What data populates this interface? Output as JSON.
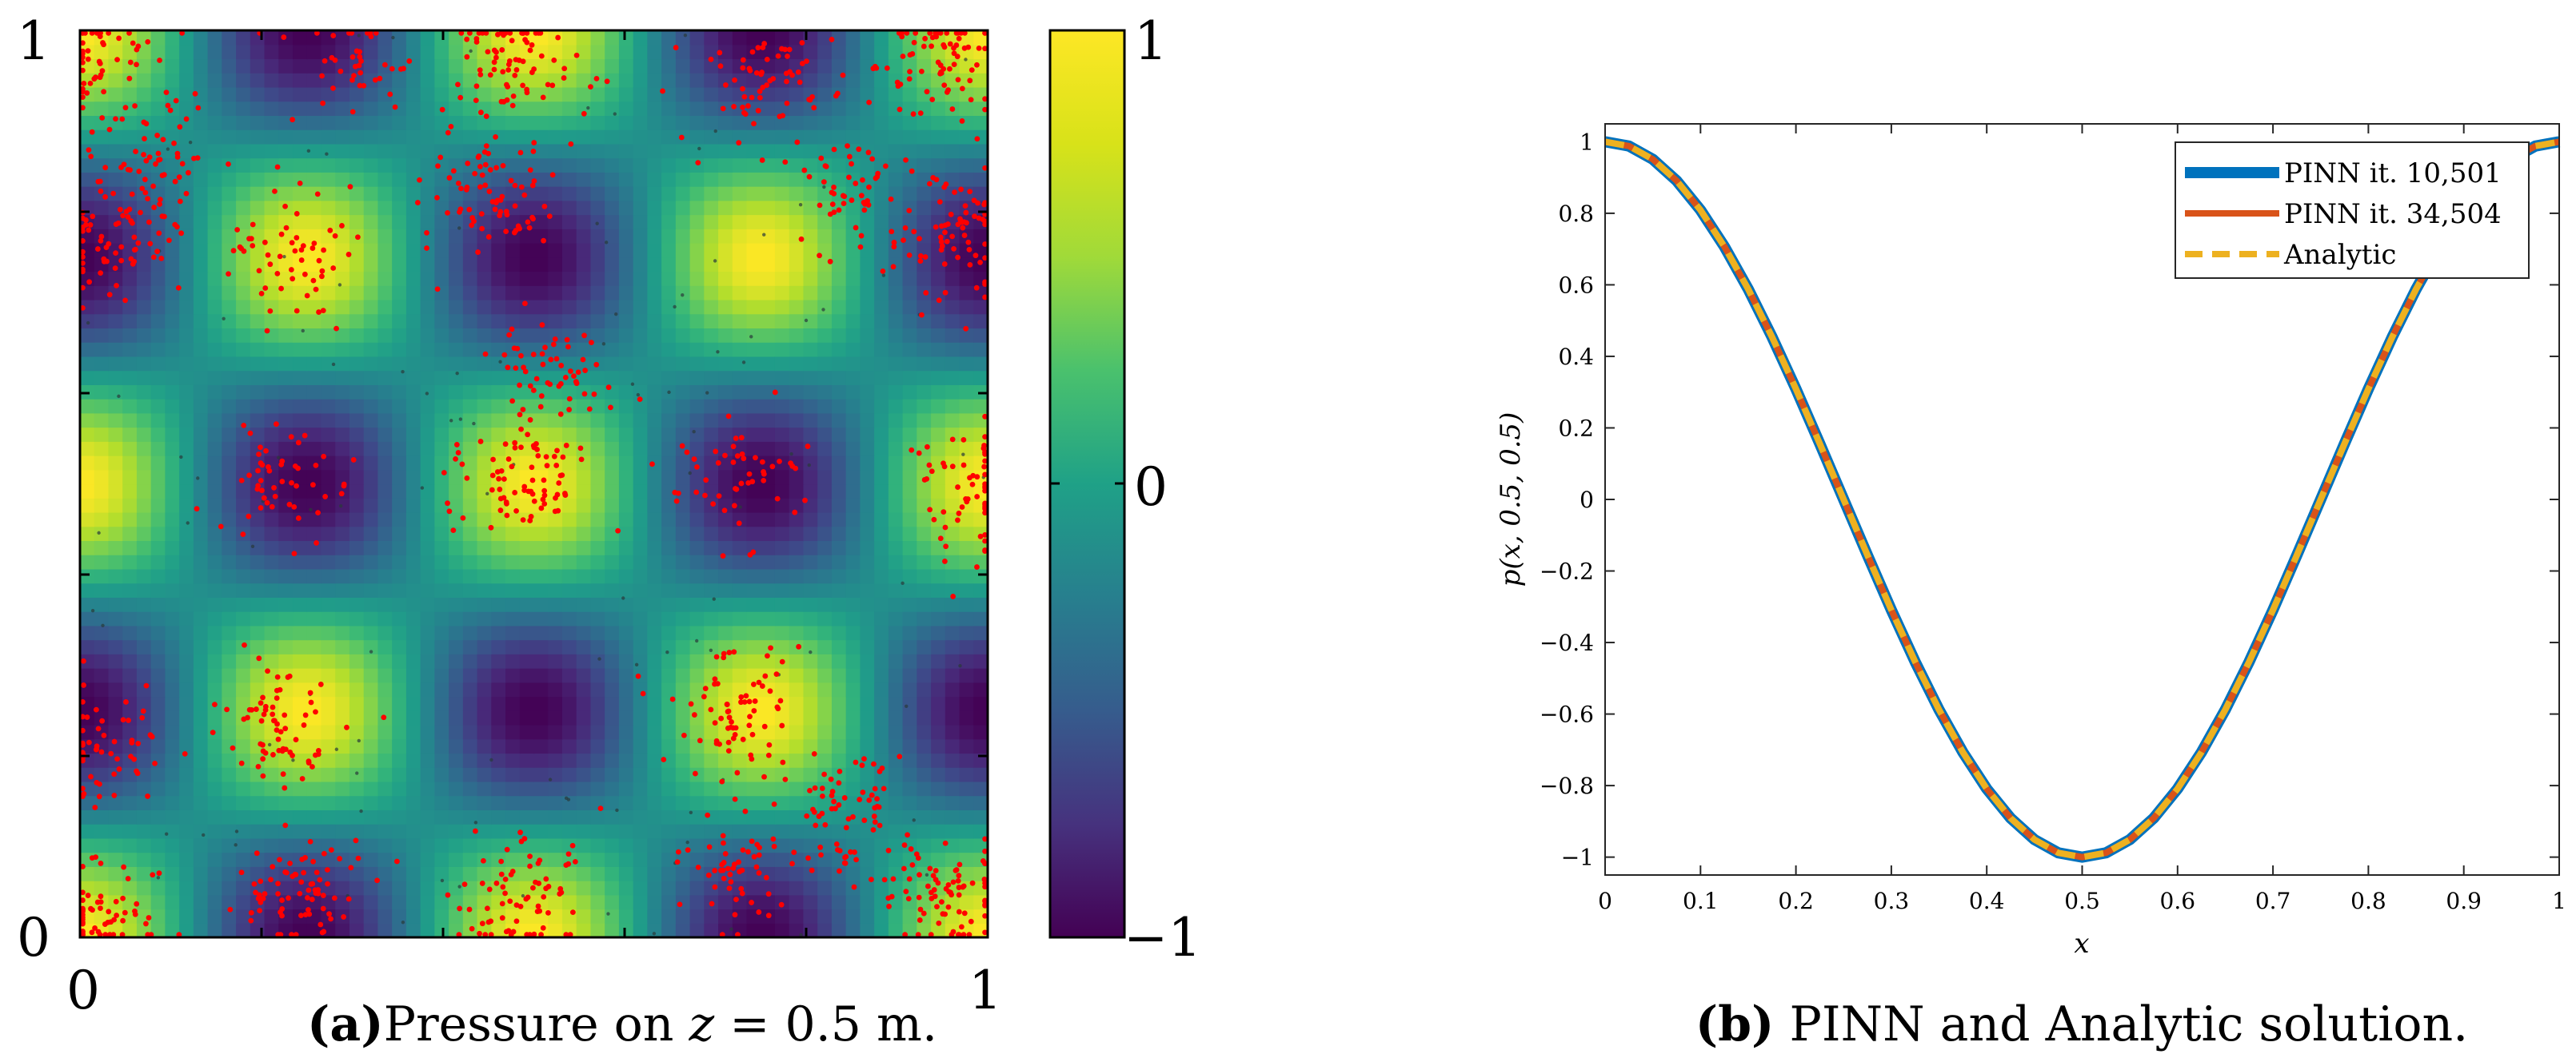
{
  "chart_data": [
    {
      "type": "heatmap",
      "panel_label": "(a)",
      "caption": "Pressure on z = 0.5 m.",
      "caption_parts": {
        "label": "(a)",
        "prefix": "Pressure on ",
        "var": "z",
        "eq": " = 0.5 m."
      },
      "x_tick_labels": [
        "0",
        "1"
      ],
      "y_tick_labels": [
        "0",
        "1"
      ],
      "xlim": [
        0,
        1
      ],
      "ylim": [
        0,
        1
      ],
      "colorbar": {
        "min": -1,
        "max": 1,
        "tick_labels": [
          "−1",
          "0",
          "1"
        ],
        "colormap": "viridis"
      },
      "field": "cos(4*pi*x)*cos(4*pi*y)",
      "grid_resolution": 64,
      "scatter_color": "#ff0000",
      "scatter_dense_regions": [
        [
          0.02,
          0.97
        ],
        [
          0.23,
          0.75
        ],
        [
          0.48,
          0.97
        ],
        [
          0.95,
          0.97
        ],
        [
          0.04,
          0.77
        ],
        [
          0.23,
          0.51
        ],
        [
          0.48,
          0.5
        ],
        [
          0.72,
          0.51
        ],
        [
          0.98,
          0.5
        ],
        [
          0.22,
          0.23
        ],
        [
          0.72,
          0.24
        ],
        [
          0.03,
          0.21
        ],
        [
          0.24,
          0.05
        ],
        [
          0.49,
          0.05
        ],
        [
          0.72,
          0.08
        ],
        [
          0.95,
          0.05
        ],
        [
          0.02,
          0.03
        ],
        [
          0.85,
          0.82
        ],
        [
          0.52,
          0.62
        ],
        [
          0.3,
          0.97
        ],
        [
          0.76,
          0.94
        ],
        [
          0.84,
          0.14
        ],
        [
          0.96,
          0.77
        ],
        [
          0.45,
          0.82
        ],
        [
          0.08,
          0.86
        ]
      ],
      "scatter_gray_color": "#2a3a3a"
    },
    {
      "type": "line",
      "panel_label": "(b)",
      "caption": "PINN and Analytic solution.",
      "caption_parts": {
        "label": "(b)",
        "text": " PINN and Analytic solution."
      },
      "xlabel": "x",
      "ylabel": "p(x, 0.5, 0.5)",
      "xlim": [
        0,
        1
      ],
      "ylim": [
        -1.05,
        1.05
      ],
      "x_ticks": [
        0,
        0.1,
        0.2,
        0.3,
        0.4,
        0.5,
        0.6,
        0.7,
        0.8,
        0.9,
        1
      ],
      "x_tick_labels": [
        "0",
        "0.1",
        "0.2",
        "0.3",
        "0.4",
        "0.5",
        "0.6",
        "0.7",
        "0.8",
        "0.9",
        "1"
      ],
      "y_ticks": [
        1,
        0.8,
        0.6,
        0.4,
        0.2,
        0,
        -0.2,
        -0.4,
        -0.6,
        -0.8,
        -1
      ],
      "y_tick_labels": [
        "1",
        "0.8",
        "0.6",
        "0.4",
        "0.2",
        "0",
        "−0.2",
        "−0.4",
        "−0.6",
        "−0.8",
        "−1"
      ],
      "legend_position": "top-right",
      "x": [
        0,
        0.025,
        0.05,
        0.075,
        0.1,
        0.125,
        0.15,
        0.175,
        0.2,
        0.225,
        0.25,
        0.275,
        0.3,
        0.325,
        0.35,
        0.375,
        0.4,
        0.425,
        0.45,
        0.475,
        0.5,
        0.525,
        0.55,
        0.575,
        0.6,
        0.625,
        0.65,
        0.675,
        0.7,
        0.725,
        0.75,
        0.775,
        0.8,
        0.825,
        0.85,
        0.875,
        0.9,
        0.925,
        0.95,
        0.975,
        1
      ],
      "series": [
        {
          "name": "PINN it. 10,501",
          "color": "#0072bd",
          "style": "solid",
          "values": [
            1.0,
            0.988,
            0.951,
            0.891,
            0.809,
            0.707,
            0.588,
            0.454,
            0.309,
            0.156,
            0.0,
            -0.156,
            -0.309,
            -0.454,
            -0.588,
            -0.707,
            -0.809,
            -0.891,
            -0.951,
            -0.988,
            -1.0,
            -0.988,
            -0.951,
            -0.891,
            -0.809,
            -0.707,
            -0.588,
            -0.454,
            -0.309,
            -0.156,
            0.0,
            0.156,
            0.309,
            0.454,
            0.588,
            0.707,
            0.809,
            0.891,
            0.951,
            0.988,
            1.0
          ]
        },
        {
          "name": "PINN it. 34,504",
          "color": "#d95319",
          "style": "solid",
          "values": [
            1.0,
            0.988,
            0.951,
            0.891,
            0.809,
            0.707,
            0.588,
            0.454,
            0.309,
            0.156,
            0.0,
            -0.156,
            -0.309,
            -0.454,
            -0.588,
            -0.707,
            -0.809,
            -0.891,
            -0.951,
            -0.988,
            -1.0,
            -0.988,
            -0.951,
            -0.891,
            -0.809,
            -0.707,
            -0.588,
            -0.454,
            -0.309,
            -0.156,
            0.0,
            0.156,
            0.309,
            0.454,
            0.588,
            0.707,
            0.809,
            0.891,
            0.951,
            0.988,
            1.0
          ]
        },
        {
          "name": "Analytic",
          "color": "#edb120",
          "style": "dashed",
          "values": [
            1.0,
            0.988,
            0.951,
            0.891,
            0.809,
            0.707,
            0.588,
            0.454,
            0.309,
            0.156,
            0.0,
            -0.156,
            -0.309,
            -0.454,
            -0.588,
            -0.707,
            -0.809,
            -0.891,
            -0.951,
            -0.988,
            -1.0,
            -0.988,
            -0.951,
            -0.891,
            -0.809,
            -0.707,
            -0.588,
            -0.454,
            -0.309,
            -0.156,
            0.0,
            0.156,
            0.309,
            0.454,
            0.588,
            0.707,
            0.809,
            0.891,
            0.951,
            0.988,
            1.0
          ]
        }
      ]
    }
  ]
}
